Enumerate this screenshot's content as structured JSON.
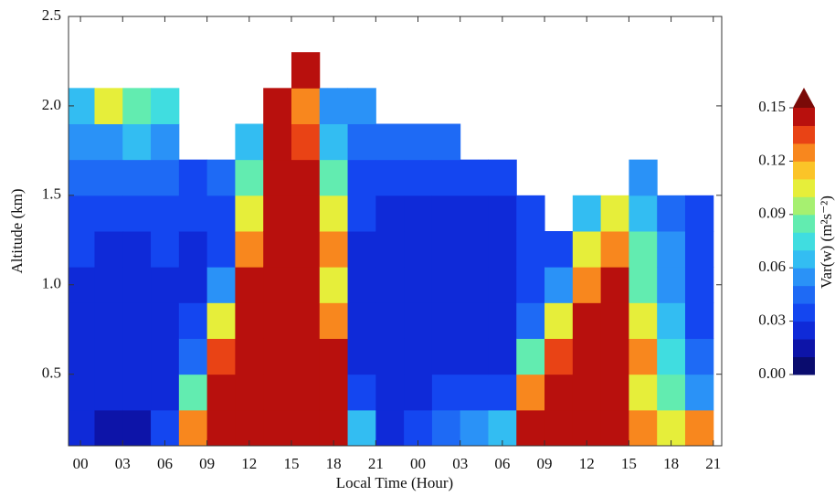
{
  "chart_data": {
    "type": "heatmap",
    "xlabel": "Local Time (Hour)",
    "ylabel": "Altitude (km)",
    "zlabel": "Var(w) (m²s⁻²)",
    "xlim": [
      -0.85,
      45.6
    ],
    "ylim": [
      0.1,
      2.5
    ],
    "zlim": [
      0,
      0.15
    ],
    "xticks": [
      {
        "value": 0,
        "label": "00"
      },
      {
        "value": 3,
        "label": "03"
      },
      {
        "value": 6,
        "label": "06"
      },
      {
        "value": 9,
        "label": "09"
      },
      12,
      15,
      18,
      21,
      {
        "value": 24,
        "label": "00"
      },
      {
        "value": 27,
        "label": "03"
      },
      {
        "value": 30,
        "label": "06"
      },
      {
        "value": 33,
        "label": "09"
      },
      {
        "value": 36,
        "label": "12"
      },
      {
        "value": 39,
        "label": "15"
      },
      {
        "value": 42,
        "label": "18"
      },
      {
        "value": 45,
        "label": "21"
      }
    ],
    "yticks": [
      0.5,
      {
        "value": 1.0,
        "label": "1.0"
      },
      1.5,
      {
        "value": 2.0,
        "label": "2.0"
      },
      2.5
    ],
    "zticks": [
      {
        "value": 0,
        "label": "0.00"
      },
      {
        "value": 0.03,
        "label": "0.03"
      },
      {
        "value": 0.06,
        "label": "0.06"
      },
      {
        "value": 0.09,
        "label": "0.09"
      },
      {
        "value": 0.12,
        "label": "0.12"
      },
      {
        "value": 0.15,
        "label": "0.15"
      }
    ],
    "colorscale": [
      "#0a0c6e",
      "#0d14a8",
      "#0f2ad8",
      "#1446f0",
      "#1e6af5",
      "#2a92f7",
      "#33bdf2",
      "#40dde0",
      "#62ecb0",
      "#a6f070",
      "#e6ee3a",
      "#fbc428",
      "#f8871e",
      "#e94315",
      "#b8100d"
    ],
    "extend_color": "#7a0a08",
    "x_step": 2,
    "y_step": 0.2,
    "x": [
      0,
      2,
      4,
      6,
      8,
      10,
      12,
      14,
      16,
      18,
      20,
      22,
      24,
      26,
      28,
      30,
      32,
      34,
      36,
      38,
      40,
      42,
      44
    ],
    "y": [
      0.2,
      0.4,
      0.6,
      0.8,
      1.0,
      1.2,
      1.4,
      1.6,
      1.8,
      2.0,
      2.2
    ],
    "z": [
      [
        0.02,
        0.02,
        0.02,
        0.02,
        0.02,
        0.03,
        0.03,
        0.04,
        0.05,
        0.06,
        null
      ],
      [
        0.01,
        0.02,
        0.02,
        0.02,
        0.02,
        0.02,
        0.03,
        0.04,
        0.05,
        0.1,
        null
      ],
      [
        0.01,
        0.02,
        0.02,
        0.02,
        0.02,
        0.02,
        0.03,
        0.04,
        0.06,
        0.08,
        null
      ],
      [
        0.03,
        0.02,
        0.02,
        0.02,
        0.02,
        0.03,
        0.03,
        0.04,
        0.05,
        0.07,
        null
      ],
      [
        0.12,
        0.08,
        0.04,
        0.03,
        0.02,
        0.02,
        0.03,
        0.03,
        null,
        null,
        null
      ],
      [
        0.15,
        0.14,
        0.13,
        0.1,
        0.05,
        0.03,
        0.03,
        0.04,
        null,
        null,
        null
      ],
      [
        0.15,
        0.15,
        0.15,
        0.15,
        0.14,
        0.12,
        0.1,
        0.08,
        0.06,
        null,
        null
      ],
      [
        0.15,
        0.15,
        0.15,
        0.15,
        0.15,
        0.15,
        0.15,
        0.15,
        0.15,
        0.14,
        null
      ],
      [
        0.15,
        0.15,
        0.15,
        0.15,
        0.15,
        0.15,
        0.15,
        0.14,
        0.13,
        0.12,
        0.15
      ],
      [
        0.15,
        0.14,
        0.15,
        0.12,
        0.1,
        0.12,
        0.1,
        0.08,
        0.06,
        0.05,
        null
      ],
      [
        0.06,
        0.03,
        0.02,
        0.02,
        0.02,
        0.02,
        0.03,
        0.03,
        0.04,
        0.05,
        null
      ],
      [
        0.02,
        0.02,
        0.02,
        0.02,
        0.02,
        0.02,
        0.02,
        0.03,
        0.04,
        null,
        null
      ],
      [
        0.03,
        0.02,
        0.02,
        0.02,
        0.02,
        0.02,
        0.02,
        0.03,
        0.04,
        null,
        null
      ],
      [
        0.04,
        0.03,
        0.02,
        0.02,
        0.02,
        0.02,
        0.02,
        0.03,
        0.04,
        null,
        null
      ],
      [
        0.05,
        0.03,
        0.02,
        0.02,
        0.02,
        0.02,
        0.02,
        0.03,
        null,
        null,
        null
      ],
      [
        0.06,
        0.03,
        0.02,
        0.02,
        0.02,
        0.02,
        0.02,
        0.03,
        null,
        null,
        null
      ],
      [
        0.15,
        0.12,
        0.08,
        0.04,
        0.03,
        0.03,
        0.03,
        null,
        null,
        null,
        null
      ],
      [
        0.15,
        0.15,
        0.13,
        0.1,
        0.05,
        0.03,
        null,
        null,
        null,
        null,
        null
      ],
      [
        0.15,
        0.15,
        0.15,
        0.14,
        0.12,
        0.1,
        0.06,
        null,
        null,
        null,
        null
      ],
      [
        0.15,
        0.15,
        0.15,
        0.15,
        0.14,
        0.12,
        0.1,
        null,
        null,
        null,
        null
      ],
      [
        0.12,
        0.1,
        0.12,
        0.1,
        0.08,
        0.08,
        0.06,
        0.05,
        null,
        null,
        null
      ],
      [
        0.1,
        0.08,
        0.07,
        0.06,
        0.05,
        0.05,
        0.04,
        null,
        null,
        null,
        null
      ],
      [
        0.12,
        0.05,
        0.04,
        0.03,
        0.03,
        0.03,
        0.03,
        null,
        null,
        null,
        null
      ]
    ]
  }
}
